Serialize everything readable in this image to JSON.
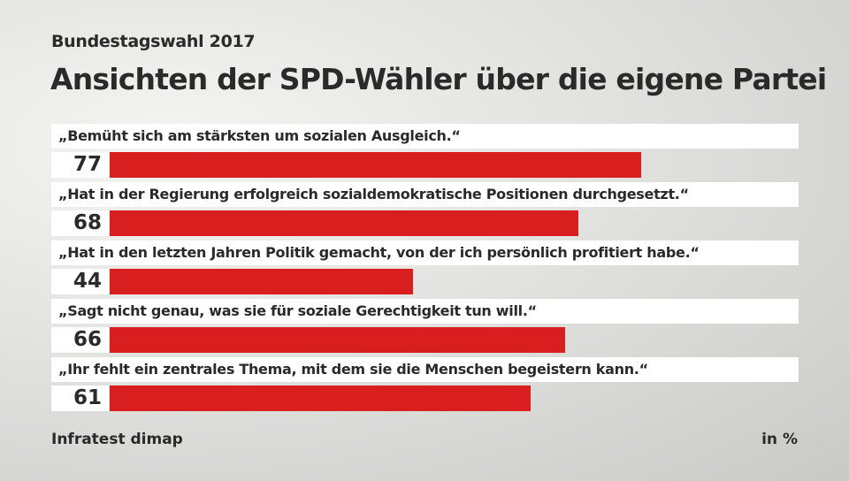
{
  "subtitle": "Bundestagswahl 2017",
  "title": "Ansichten der SPD-Wähler über die eigene Partei",
  "source": "Infratest dimap",
  "unit": "in %",
  "chart_data": {
    "type": "bar",
    "orientation": "horizontal",
    "title": "Ansichten der SPD-Wähler über die eigene Partei",
    "categories": [
      "„Bemüht sich am stärksten um sozialen Ausgleich.“",
      "„Hat in der Regierung erfolgreich sozialdemokratische Positionen durchgesetzt.“",
      "„Hat in den letzten Jahren Politik gemacht, von der ich persönlich profitiert habe.“",
      "„Sagt nicht genau, was sie für soziale Gerechtigkeit tun will.“",
      "„Ihr fehlt ein zentrales Thema, mit dem sie die Menschen begeistern kann.“"
    ],
    "values": [
      77,
      68,
      44,
      66,
      61
    ],
    "xlim": [
      0,
      100
    ],
    "bar_color": "#d81e1e",
    "grid": false
  }
}
